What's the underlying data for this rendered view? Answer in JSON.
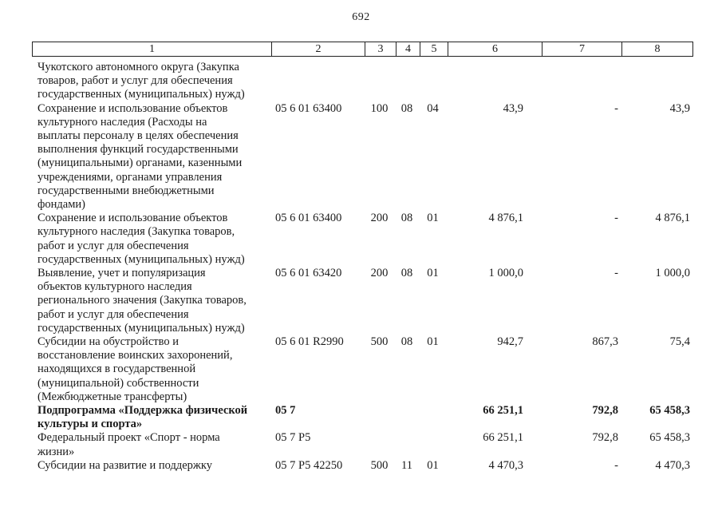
{
  "page_number": "692",
  "table": {
    "columns": [
      "1",
      "2",
      "3",
      "4",
      "5",
      "6",
      "7",
      "8"
    ],
    "rows": [
      {
        "name": "Чукотского автономного округа (Закупка\nтоваров, работ и услуг для обеспечения\nгосударственных (муниципальных) нужд)",
        "code": "",
        "vr": "",
        "rz": "",
        "pr": "",
        "amount1": "",
        "amount2": "",
        "amount3": "",
        "bold": false
      },
      {
        "name": "Сохранение и использование объектов\nкультурного наследия (Расходы на\nвыплаты персоналу в целях обеспечения\nвыполнения функций государственными\n(муниципальными) органами, казенными\nучреждениями, органами управления\nгосударственными внебюджетными\nфондами)",
        "code": "05 6 01 63400",
        "vr": "100",
        "rz": "08",
        "pr": "04",
        "amount1": "43,9",
        "amount2": "-",
        "amount3": "43,9",
        "bold": false
      },
      {
        "name": "Сохранение и использование объектов\nкультурного наследия (Закупка товаров,\nработ и услуг для обеспечения\nгосударственных (муниципальных) нужд)",
        "code": "05 6 01 63400",
        "vr": "200",
        "rz": "08",
        "pr": "01",
        "amount1": "4 876,1",
        "amount2": "-",
        "amount3": "4 876,1",
        "bold": false
      },
      {
        "name": "Выявление, учет и популяризация\nобъектов культурного наследия\nрегионального значения (Закупка товаров,\nработ и услуг для обеспечения\nгосударственных (муниципальных) нужд)",
        "code": "05 6 01 63420",
        "vr": "200",
        "rz": "08",
        "pr": "01",
        "amount1": "1 000,0",
        "amount2": "-",
        "amount3": "1 000,0",
        "bold": false
      },
      {
        "name": "Субсидии на обустройство и\nвосстановление воинских захоронений,\nнаходящихся в государственной\n(муниципальной) собственности\n(Межбюджетные трансферты)",
        "code": "05 6 01 R2990",
        "vr": "500",
        "rz": "08",
        "pr": "01",
        "amount1": "942,7",
        "amount2": "867,3",
        "amount3": "75,4",
        "bold": false
      },
      {
        "name": "Подпрограмма «Поддержка физической\nкультуры и спорта»",
        "code": "05 7",
        "vr": "",
        "rz": "",
        "pr": "",
        "amount1": "66 251,1",
        "amount2": "792,8",
        "amount3": "65 458,3",
        "bold": true
      },
      {
        "name": "Федеральный проект «Спорт - норма\nжизни»",
        "code": "05 7 P5",
        "vr": "",
        "rz": "",
        "pr": "",
        "amount1": "66 251,1",
        "amount2": "792,8",
        "amount3": "65 458,3",
        "bold": false
      },
      {
        "name": "Субсидии на развитие и поддержку",
        "code": "05 7 P5 42250",
        "vr": "500",
        "rz": "11",
        "pr": "01",
        "amount1": "4 470,3",
        "amount2": "-",
        "amount3": "4 470,3",
        "bold": false
      }
    ]
  }
}
